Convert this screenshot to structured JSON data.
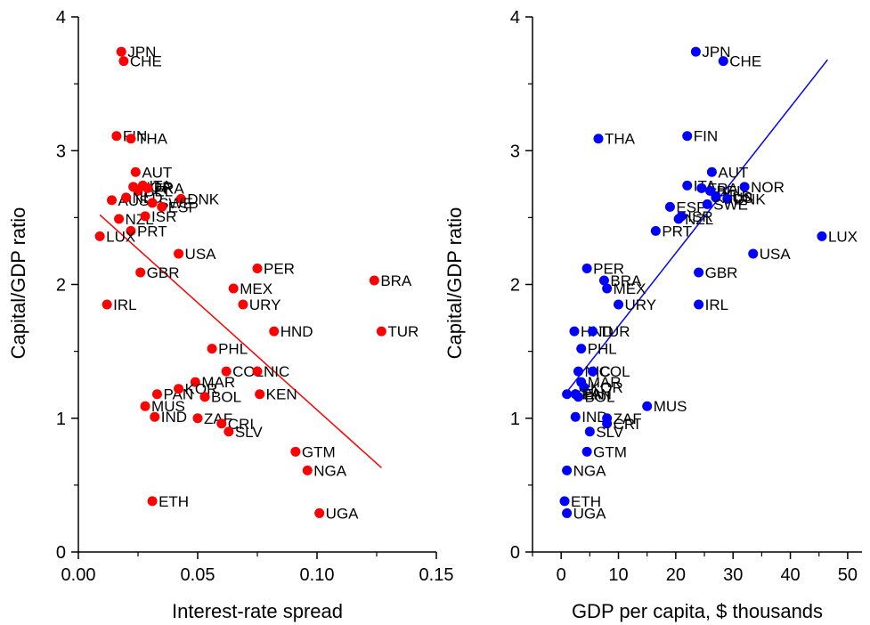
{
  "chart_data": [
    {
      "type": "scatter",
      "xlabel": "Interest-rate spread",
      "ylabel": "Capital/GDP ratio",
      "xlim": [
        0,
        0.15
      ],
      "ylim": [
        0,
        4
      ],
      "xticks": [
        "0.00",
        "0.05",
        "0.10",
        "0.15"
      ],
      "yticks": [
        "0",
        "1",
        "2",
        "3",
        "4"
      ],
      "marker_color": "#ff0000",
      "line_color": "#ff0000",
      "fit_line": {
        "x": [
          0.009,
          0.127
        ],
        "y": [
          2.52,
          0.63
        ]
      },
      "points": [
        {
          "label": "JPN",
          "x": 0.018,
          "y": 3.74
        },
        {
          "label": "CHE",
          "x": 0.019,
          "y": 3.67
        },
        {
          "label": "FIN",
          "x": 0.016,
          "y": 3.11
        },
        {
          "label": "THA",
          "x": 0.022,
          "y": 3.09
        },
        {
          "label": "AUT",
          "x": 0.024,
          "y": 2.84
        },
        {
          "label": "NOR",
          "x": 0.023,
          "y": 2.73
        },
        {
          "label": "ITA",
          "x": 0.027,
          "y": 2.74
        },
        {
          "label": "BEL",
          "x": 0.025,
          "y": 2.7
        },
        {
          "label": "FRA",
          "x": 0.029,
          "y": 2.72
        },
        {
          "label": "DNK",
          "x": 0.043,
          "y": 2.64
        },
        {
          "label": "AUS",
          "x": 0.014,
          "y": 2.63
        },
        {
          "label": "NLD",
          "x": 0.02,
          "y": 2.65
        },
        {
          "label": "SWE",
          "x": 0.031,
          "y": 2.61
        },
        {
          "label": "ESP",
          "x": 0.035,
          "y": 2.58
        },
        {
          "label": "NZL",
          "x": 0.017,
          "y": 2.49
        },
        {
          "label": "ISR",
          "x": 0.028,
          "y": 2.51
        },
        {
          "label": "PRT",
          "x": 0.022,
          "y": 2.4
        },
        {
          "label": "LUX",
          "x": 0.009,
          "y": 2.36
        },
        {
          "label": "USA",
          "x": 0.042,
          "y": 2.23
        },
        {
          "label": "PER",
          "x": 0.075,
          "y": 2.12
        },
        {
          "label": "GBR",
          "x": 0.026,
          "y": 2.09
        },
        {
          "label": "BRA",
          "x": 0.124,
          "y": 2.03
        },
        {
          "label": "MEX",
          "x": 0.065,
          "y": 1.97
        },
        {
          "label": "IRL",
          "x": 0.012,
          "y": 1.85
        },
        {
          "label": "URY",
          "x": 0.069,
          "y": 1.85
        },
        {
          "label": "HND",
          "x": 0.082,
          "y": 1.65
        },
        {
          "label": "TUR",
          "x": 0.127,
          "y": 1.65
        },
        {
          "label": "PHL",
          "x": 0.056,
          "y": 1.52
        },
        {
          "label": "COL",
          "x": 0.062,
          "y": 1.35
        },
        {
          "label": "NIC",
          "x": 0.075,
          "y": 1.35
        },
        {
          "label": "MAR",
          "x": 0.049,
          "y": 1.27
        },
        {
          "label": "PAN",
          "x": 0.033,
          "y": 1.18
        },
        {
          "label": "KOR",
          "x": 0.042,
          "y": 1.22
        },
        {
          "label": "KEN",
          "x": 0.076,
          "y": 1.18
        },
        {
          "label": "BOL",
          "x": 0.053,
          "y": 1.16
        },
        {
          "label": "MUS",
          "x": 0.028,
          "y": 1.09
        },
        {
          "label": "IND",
          "x": 0.032,
          "y": 1.01
        },
        {
          "label": "ZAF",
          "x": 0.05,
          "y": 1.0
        },
        {
          "label": "CRI",
          "x": 0.06,
          "y": 0.96
        },
        {
          "label": "SLV",
          "x": 0.063,
          "y": 0.9
        },
        {
          "label": "GTM",
          "x": 0.091,
          "y": 0.75
        },
        {
          "label": "NGA",
          "x": 0.096,
          "y": 0.61
        },
        {
          "label": "ETH",
          "x": 0.031,
          "y": 0.38
        },
        {
          "label": "UGA",
          "x": 0.101,
          "y": 0.29
        }
      ]
    },
    {
      "type": "scatter",
      "xlabel": "GDP per capita, $ thousands",
      "ylabel": "Capital/GDP ratio",
      "xlim": [
        -5,
        52.5
      ],
      "ylim": [
        0,
        4
      ],
      "xticks": [
        "0",
        "10",
        "20",
        "30",
        "40",
        "50"
      ],
      "yticks": [
        "0",
        "1",
        "2",
        "3",
        "4"
      ],
      "marker_color": "#0000ff",
      "line_color": "#0000ff",
      "fit_line": {
        "x": [
          0.5,
          46.5
        ],
        "y": [
          1.17,
          3.68
        ]
      },
      "points": [
        {
          "label": "JPN",
          "x": 23.5,
          "y": 3.74
        },
        {
          "label": "CHE",
          "x": 28.3,
          "y": 3.67
        },
        {
          "label": "THA",
          "x": 6.5,
          "y": 3.09
        },
        {
          "label": "FIN",
          "x": 22.0,
          "y": 3.11
        },
        {
          "label": "AUT",
          "x": 26.3,
          "y": 2.84
        },
        {
          "label": "ITA",
          "x": 22.0,
          "y": 2.74
        },
        {
          "label": "FRA",
          "x": 24.5,
          "y": 2.72
        },
        {
          "label": "BEL",
          "x": 26.0,
          "y": 2.7
        },
        {
          "label": "NOR",
          "x": 32.0,
          "y": 2.73
        },
        {
          "label": "AUS",
          "x": 27.0,
          "y": 2.65
        },
        {
          "label": "NLD",
          "x": 27.0,
          "y": 2.66
        },
        {
          "label": "DNK",
          "x": 29.0,
          "y": 2.64
        },
        {
          "label": "ESP",
          "x": 19.0,
          "y": 2.58
        },
        {
          "label": "SWE",
          "x": 25.5,
          "y": 2.6
        },
        {
          "label": "ISR",
          "x": 21.0,
          "y": 2.51
        },
        {
          "label": "NZL",
          "x": 20.5,
          "y": 2.49
        },
        {
          "label": "PRT",
          "x": 16.5,
          "y": 2.4
        },
        {
          "label": "LUX",
          "x": 45.5,
          "y": 2.36
        },
        {
          "label": "USA",
          "x": 33.5,
          "y": 2.23
        },
        {
          "label": "PER",
          "x": 4.5,
          "y": 2.12
        },
        {
          "label": "GBR",
          "x": 24.0,
          "y": 2.09
        },
        {
          "label": "BRA",
          "x": 7.5,
          "y": 2.03
        },
        {
          "label": "MEX",
          "x": 8.0,
          "y": 1.97
        },
        {
          "label": "IRL",
          "x": 24.0,
          "y": 1.85
        },
        {
          "label": "URY",
          "x": 10.0,
          "y": 1.85
        },
        {
          "label": "HND",
          "x": 2.3,
          "y": 1.65
        },
        {
          "label": "TUR",
          "x": 5.5,
          "y": 1.65
        },
        {
          "label": "PHL",
          "x": 3.5,
          "y": 1.52
        },
        {
          "label": "NIC",
          "x": 3.0,
          "y": 1.35
        },
        {
          "label": "COL",
          "x": 5.5,
          "y": 1.35
        },
        {
          "label": "MAR",
          "x": 3.5,
          "y": 1.27
        },
        {
          "label": "KOR",
          "x": 4.0,
          "y": 1.23
        },
        {
          "label": "KEN",
          "x": 1.0,
          "y": 1.18
        },
        {
          "label": "PAN",
          "x": 2.5,
          "y": 1.18
        },
        {
          "label": "BOL",
          "x": 3.0,
          "y": 1.16
        },
        {
          "label": "MUS",
          "x": 15.0,
          "y": 1.09
        },
        {
          "label": "IND",
          "x": 2.5,
          "y": 1.01
        },
        {
          "label": "ZAF",
          "x": 8.0,
          "y": 1.0
        },
        {
          "label": "CRI",
          "x": 8.0,
          "y": 0.96
        },
        {
          "label": "SLV",
          "x": 5.0,
          "y": 0.9
        },
        {
          "label": "GTM",
          "x": 4.5,
          "y": 0.75
        },
        {
          "label": "NGA",
          "x": 1.0,
          "y": 0.61
        },
        {
          "label": "ETH",
          "x": 0.6,
          "y": 0.38
        },
        {
          "label": "UGA",
          "x": 1.0,
          "y": 0.29
        }
      ]
    }
  ]
}
